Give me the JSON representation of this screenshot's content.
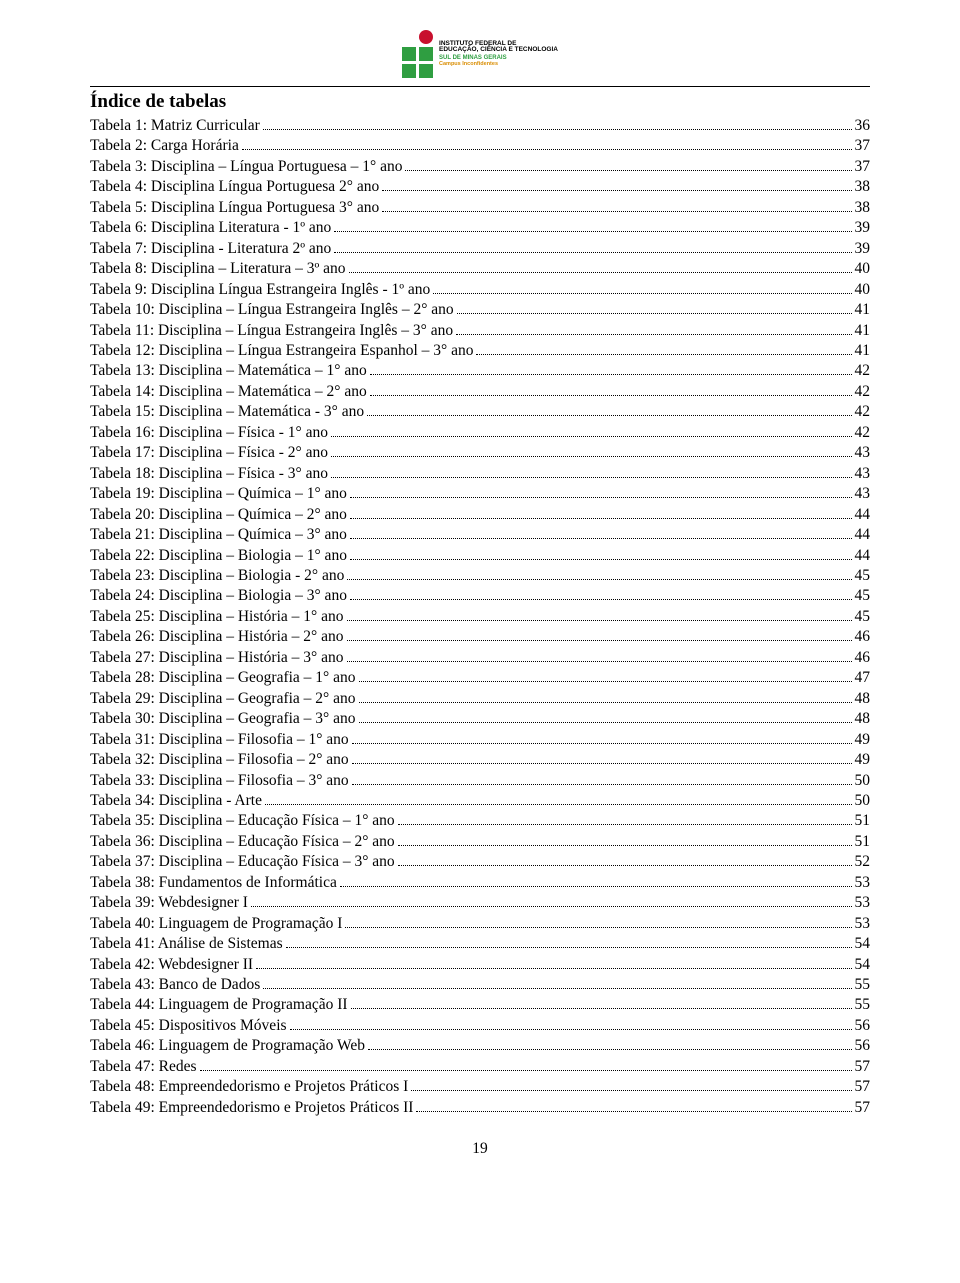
{
  "logo": {
    "line1": "INSTITUTO FEDERAL DE",
    "line1b": "EDUCAÇÃO, CIÊNCIA E TECNOLOGIA",
    "line2": "SUL DE MINAS GERAIS",
    "line3": "Campus Inconfidentes"
  },
  "title": "Índice de tabelas",
  "page_number": "19",
  "entries": [
    {
      "label": "Tabela 1: Matriz Curricular",
      "page": "36"
    },
    {
      "label": "Tabela 2: Carga Horária",
      "page": "37"
    },
    {
      "label": "Tabela 3: Disciplina – Língua Portuguesa – 1° ano",
      "page": "37"
    },
    {
      "label": "Tabela 4: Disciplina Língua Portuguesa 2° ano",
      "page": "38"
    },
    {
      "label": "Tabela 5: Disciplina Língua Portuguesa 3° ano",
      "page": "38"
    },
    {
      "label": "Tabela 6: Disciplina Literatura - 1º ano",
      "page": "39"
    },
    {
      "label": "Tabela 7: Disciplina - Literatura 2º ano",
      "page": "39"
    },
    {
      "label": "Tabela 8: Disciplina – Literatura – 3º ano",
      "page": "40"
    },
    {
      "label": "Tabela 9: Disciplina Língua Estrangeira Inglês - 1º ano",
      "page": "40"
    },
    {
      "label": "Tabela 10: Disciplina – Língua Estrangeira Inglês – 2° ano",
      "page": "41"
    },
    {
      "label": "Tabela 11: Disciplina – Língua Estrangeira Inglês – 3° ano",
      "page": "41"
    },
    {
      "label": "Tabela 12: Disciplina – Língua Estrangeira Espanhol – 3° ano",
      "page": "41"
    },
    {
      "label": "Tabela 13: Disciplina – Matemática – 1° ano",
      "page": "42"
    },
    {
      "label": "Tabela 14: Disciplina – Matemática – 2° ano",
      "page": "42"
    },
    {
      "label": "Tabela 15: Disciplina – Matemática - 3° ano ",
      "page": "42"
    },
    {
      "label": "Tabela 16: Disciplina – Física - 1° ano ",
      "page": "42"
    },
    {
      "label": "Tabela 17: Disciplina – Física - 2° ano ",
      "page": "43"
    },
    {
      "label": "Tabela 18: Disciplina – Física - 3° ano ",
      "page": "43"
    },
    {
      "label": "Tabela 19: Disciplina – Química – 1° ano ",
      "page": "43"
    },
    {
      "label": "Tabela 20: Disciplina – Química – 2° ano",
      "page": "44"
    },
    {
      "label": "Tabela 21: Disciplina – Química – 3° ano",
      "page": "44"
    },
    {
      "label": "Tabela 22: Disciplina – Biologia – 1° ano ",
      "page": "44"
    },
    {
      "label": "Tabela 23: Disciplina – Biologia - 2° ano ",
      "page": "45"
    },
    {
      "label": "Tabela 24: Disciplina – Biologia – 3° ano",
      "page": "45"
    },
    {
      "label": "Tabela 25: Disciplina – História – 1° ano",
      "page": "45"
    },
    {
      "label": "Tabela 26: Disciplina – História – 2° ano",
      "page": "46"
    },
    {
      "label": "Tabela 27: Disciplina – História – 3° ano",
      "page": "46"
    },
    {
      "label": "Tabela 28: Disciplina – Geografia – 1° ano",
      "page": "47"
    },
    {
      "label": "Tabela 29: Disciplina – Geografia – 2° ano",
      "page": "48"
    },
    {
      "label": "Tabela 30: Disciplina – Geografia – 3° ano",
      "page": "48"
    },
    {
      "label": "Tabela 31: Disciplina – Filosofia – 1° ano ",
      "page": "49"
    },
    {
      "label": "Tabela 32: Disciplina – Filosofia – 2° ano",
      "page": "49"
    },
    {
      "label": "Tabela 33: Disciplina – Filosofia – 3° ano",
      "page": "50"
    },
    {
      "label": "Tabela 34: Disciplina - Arte",
      "page": "50"
    },
    {
      "label": "Tabela 35: Disciplina – Educação Física – 1° ano",
      "page": "51"
    },
    {
      "label": "Tabela 36: Disciplina – Educação Física – 2° ano",
      "page": "51"
    },
    {
      "label": "Tabela 37: Disciplina – Educação Física – 3° ano",
      "page": "52"
    },
    {
      "label": "Tabela 38: Fundamentos de Informática",
      "page": "53"
    },
    {
      "label": "Tabela 39: Webdesigner I",
      "page": "53"
    },
    {
      "label": "Tabela 40: Linguagem de Programação I",
      "page": "53"
    },
    {
      "label": "Tabela 41: Análise de Sistemas",
      "page": "54"
    },
    {
      "label": "Tabela 42: Webdesigner II",
      "page": "54"
    },
    {
      "label": "Tabela 43: Banco de Dados",
      "page": "55"
    },
    {
      "label": "Tabela 44: Linguagem de Programação II",
      "page": "55"
    },
    {
      "label": "Tabela 45: Dispositivos Móveis",
      "page": "56"
    },
    {
      "label": "Tabela 46: Linguagem de Programação Web",
      "page": "56"
    },
    {
      "label": "Tabela 47: Redes",
      "page": "57"
    },
    {
      "label": "Tabela 48: Empreendedorismo e Projetos Práticos I",
      "page": "57"
    },
    {
      "label": "Tabela 49: Empreendedorismo e Projetos Práticos II",
      "page": "57"
    }
  ]
}
